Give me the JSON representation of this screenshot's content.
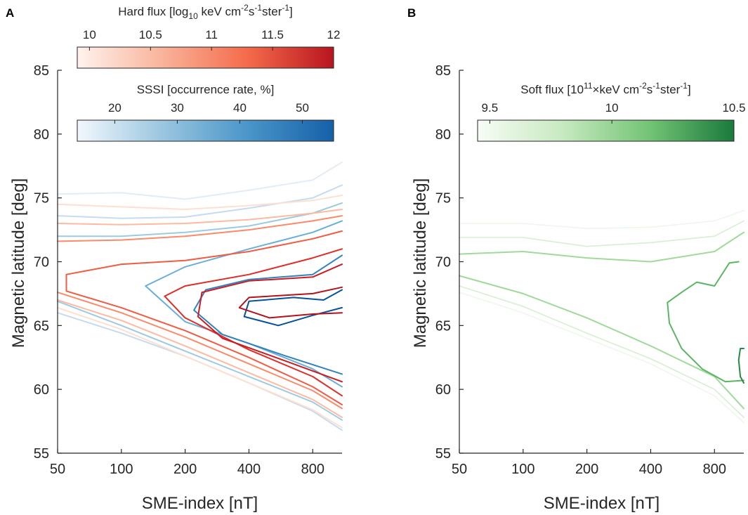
{
  "chart_data": [
    {
      "panel": "A",
      "type": "line",
      "subtype": "contour",
      "xlabel": "SME-index [nT]",
      "ylabel": "Magnetic latitude [deg]",
      "x_scale": "log",
      "xlim": [
        50,
        1100
      ],
      "ylim": [
        55,
        85
      ],
      "x_ticks": [
        "50",
        "100",
        "200",
        "400",
        "800"
      ],
      "x_tick_values": [
        50,
        100,
        200,
        400,
        800
      ],
      "y_ticks": [
        "55",
        "60",
        "65",
        "70",
        "75",
        "80",
        "85"
      ],
      "y_tick_values": [
        55,
        60,
        65,
        70,
        75,
        80,
        85
      ],
      "colorbars": [
        {
          "name": "hard-flux",
          "title_parts": [
            "Hard flux [log",
            "10",
            " keV cm",
            "-2",
            "s",
            "-1",
            "ster",
            "-1",
            "]"
          ],
          "ticks": [
            "10",
            "10.5",
            "11",
            "11.5",
            "12"
          ],
          "tick_values": [
            10,
            10.5,
            11,
            11.5,
            12
          ],
          "range": [
            9.9,
            12
          ],
          "colors": [
            "#fef3ee",
            "#f9b39a",
            "#f46a4a",
            "#b8151f"
          ]
        },
        {
          "name": "sssi",
          "title": "SSSI [occurrence rate, %]",
          "ticks": [
            "20",
            "30",
            "40",
            "50"
          ],
          "tick_values": [
            20,
            30,
            40,
            50
          ],
          "range": [
            14,
            55
          ],
          "colors": [
            "#f2f7fc",
            "#9ac6e0",
            "#4a95c8",
            "#1560a8"
          ]
        }
      ],
      "series": [
        {
          "name": "SSSI 15%",
          "level": 15,
          "color": "#e1ecf7",
          "x": [
            50,
            100,
            200,
            400,
            800,
            1100
          ],
          "y": [
            75.3,
            75.4,
            74.9,
            75.6,
            76.4,
            77.8
          ]
        },
        {
          "name": "SSSI 20%",
          "level": 20,
          "color": "#c6dbef",
          "x": [
            50,
            100,
            200,
            400,
            800,
            1100
          ],
          "y": [
            73.6,
            73.4,
            73.5,
            74.2,
            75.0,
            76.0
          ]
        },
        {
          "name": "SSSI 20% (lower)",
          "level": 20,
          "color": "#c6dbef",
          "x": [
            50,
            100,
            200,
            400,
            800,
            1100
          ],
          "y": [
            66.0,
            64.4,
            62.6,
            60.5,
            58.3,
            56.8
          ]
        },
        {
          "name": "SSSI 30%",
          "level": 30,
          "color": "#9ecae1",
          "x": [
            50,
            100,
            200,
            400,
            800,
            1100
          ],
          "y": [
            72.0,
            72.0,
            72.3,
            72.8,
            73.8,
            74.6
          ]
        },
        {
          "name": "SSSI 30% (lower)",
          "level": 30,
          "color": "#9ecae1",
          "x": [
            50,
            100,
            200,
            400,
            800,
            1100
          ],
          "y": [
            66.9,
            65.0,
            63.0,
            61.0,
            59.0,
            57.6
          ]
        },
        {
          "name": "SSSI 40%",
          "level": 40,
          "color": "#6baed6",
          "x": [
            1100,
            800,
            400,
            200,
            130,
            200,
            400,
            800,
            1100
          ],
          "y": [
            73.2,
            72.3,
            71.0,
            69.6,
            68.1,
            65.3,
            63.6,
            61.6,
            60.2
          ]
        },
        {
          "name": "SSSI 50%",
          "level": 50,
          "color": "#3182bd",
          "x": [
            1100,
            800,
            400,
            250,
            220,
            300,
            600,
            1100
          ],
          "y": [
            70.5,
            69.0,
            68.6,
            67.8,
            66.2,
            64.3,
            62.6,
            61.2
          ]
        },
        {
          "name": "SSSI 55%",
          "level": 55,
          "color": "#08519c",
          "x": [
            1100,
            900,
            650,
            400,
            380,
            550,
            800,
            1100
          ],
          "y": [
            67.8,
            67.0,
            67.2,
            66.9,
            65.7,
            65.0,
            65.8,
            66.4
          ]
        },
        {
          "name": "Hard flux 10.0",
          "level": 10.0,
          "color": "#fde0d2",
          "x": [
            50,
            100,
            200,
            400,
            800,
            1100
          ],
          "y": [
            74.5,
            74.3,
            74.1,
            74.4,
            74.8,
            75.2
          ]
        },
        {
          "name": "Hard flux 10.0 (lower)",
          "level": 10.0,
          "color": "#fde0d2",
          "x": [
            50,
            100,
            200,
            400,
            800,
            1100
          ],
          "y": [
            66.4,
            64.7,
            62.6,
            60.5,
            58.4,
            57.0
          ]
        },
        {
          "name": "Hard flux 10.5",
          "level": 10.5,
          "color": "#fcbba1",
          "x": [
            50,
            100,
            200,
            400,
            800,
            1100
          ],
          "y": [
            73.0,
            72.9,
            73.0,
            73.3,
            73.8,
            74.1
          ]
        },
        {
          "name": "Hard flux 10.5 (lower)",
          "level": 10.5,
          "color": "#fcbba1",
          "x": [
            50,
            100,
            200,
            400,
            800,
            1100
          ],
          "y": [
            67.0,
            65.4,
            63.4,
            61.3,
            59.2,
            57.8
          ]
        },
        {
          "name": "Hard flux 11.0",
          "level": 11.0,
          "color": "#fb8a6a",
          "x": [
            50,
            100,
            200,
            400,
            800,
            1100
          ],
          "y": [
            71.6,
            71.7,
            72.0,
            72.5,
            73.2,
            73.6
          ]
        },
        {
          "name": "Hard flux 11.0 (lower)",
          "level": 11.0,
          "color": "#fb8a6a",
          "x": [
            50,
            100,
            200,
            400,
            800,
            1100
          ],
          "y": [
            67.6,
            66.0,
            64.1,
            62.0,
            59.9,
            58.5
          ]
        },
        {
          "name": "Hard flux 11.5",
          "level": 11.5,
          "color": "#ef5b43",
          "x": [
            1100,
            800,
            400,
            200,
            100,
            55,
            55,
            100,
            200,
            400,
            800,
            1100
          ],
          "y": [
            72.4,
            71.8,
            70.8,
            70.1,
            69.8,
            69.0,
            67.7,
            66.4,
            64.6,
            62.5,
            60.2,
            58.8
          ]
        },
        {
          "name": "Hard flux 11.8",
          "level": 11.8,
          "color": "#de2d26",
          "x": [
            1100,
            800,
            400,
            200,
            160,
            200,
            400,
            800,
            1100
          ],
          "y": [
            71.0,
            70.3,
            69.0,
            68.1,
            67.3,
            65.6,
            63.1,
            61.0,
            59.5
          ]
        },
        {
          "name": "Hard flux 12.0",
          "level": 12.0,
          "color": "#c81d24",
          "x": [
            1100,
            800,
            400,
            240,
            230,
            300,
            600,
            1100
          ],
          "y": [
            69.8,
            68.8,
            68.5,
            67.6,
            65.7,
            64.0,
            62.2,
            60.6
          ]
        },
        {
          "name": "Hard flux 12.2",
          "level": 12.2,
          "color": "#b2131c",
          "x": [
            1100,
            800,
            400,
            360,
            500,
            800,
            1100
          ],
          "y": [
            68.0,
            67.5,
            67.2,
            66.4,
            65.6,
            65.9,
            66.0
          ]
        }
      ]
    },
    {
      "panel": "B",
      "type": "line",
      "subtype": "contour",
      "xlabel": "SME-index [nT]",
      "ylabel": "Magnetic latitude [deg]",
      "x_scale": "log",
      "xlim": [
        50,
        1100
      ],
      "ylim": [
        55,
        85
      ],
      "x_ticks": [
        "50",
        "100",
        "200",
        "400",
        "800"
      ],
      "x_tick_values": [
        50,
        100,
        200,
        400,
        800
      ],
      "y_ticks": [
        "55",
        "60",
        "65",
        "70",
        "75",
        "80",
        "85"
      ],
      "y_tick_values": [
        55,
        60,
        65,
        70,
        75,
        80,
        85
      ],
      "colorbars": [
        {
          "name": "soft-flux",
          "title_parts": [
            "Soft flux [10",
            "11",
            "×keV cm",
            "-2",
            "s",
            "-1",
            "ster",
            "-1",
            "]"
          ],
          "ticks": [
            "9.5",
            "10",
            "10.5"
          ],
          "tick_values": [
            9.5,
            10,
            10.5
          ],
          "range": [
            9.45,
            10.5
          ],
          "colors": [
            "#f7fcf5",
            "#c7e9c0",
            "#74c476",
            "#1a7a3c"
          ]
        }
      ],
      "series": [
        {
          "name": "Soft flux 9.2",
          "level": 9.2,
          "color": "#eef7ec",
          "x": [
            50,
            100,
            200,
            400,
            800,
            1100
          ],
          "y": [
            73.0,
            73.0,
            72.6,
            72.7,
            73.2,
            74.0
          ]
        },
        {
          "name": "Soft flux 9.2 (lower)",
          "level": 9.2,
          "color": "#eef7ec",
          "x": [
            50,
            100,
            200,
            400,
            800,
            1100
          ],
          "y": [
            67.6,
            66.0,
            64.0,
            62.0,
            59.5,
            57.4
          ]
        },
        {
          "name": "Soft flux 9.5",
          "level": 9.5,
          "color": "#d5efd0",
          "x": [
            50,
            100,
            200,
            400,
            800,
            1100
          ],
          "y": [
            71.9,
            71.9,
            71.2,
            71.5,
            72.0,
            73.2
          ]
        },
        {
          "name": "Soft flux 9.5 (lower)",
          "level": 9.5,
          "color": "#d5efd0",
          "x": [
            50,
            100,
            200,
            400,
            800,
            1100
          ],
          "y": [
            68.1,
            66.5,
            64.4,
            62.4,
            60.0,
            57.8
          ]
        },
        {
          "name": "Soft flux 9.8",
          "level": 9.8,
          "color": "#a1d99b",
          "x": [
            50,
            100,
            200,
            400,
            800,
            1100
          ],
          "y": [
            70.6,
            70.8,
            70.3,
            70.0,
            70.8,
            72.3
          ]
        },
        {
          "name": "Soft flux 9.8 (lower)",
          "level": 9.8,
          "color": "#a1d99b",
          "x": [
            50,
            100,
            200,
            400,
            800,
            1100
          ],
          "y": [
            68.9,
            67.5,
            65.6,
            63.4,
            61.0,
            58.5
          ]
        },
        {
          "name": "Soft flux 10.2",
          "level": 10.2,
          "color": "#5cb563",
          "x": [
            1040,
            940,
            800,
            660,
            560,
            480,
            490,
            560,
            700,
            900,
            1100
          ],
          "y": [
            70.0,
            69.9,
            68.1,
            68.4,
            67.6,
            66.8,
            65.2,
            63.2,
            61.6,
            60.6,
            60.7
          ]
        },
        {
          "name": "Soft flux 10.45",
          "level": 10.45,
          "color": "#2a8a42",
          "x": [
            1100,
            1060,
            1040,
            1060,
            1100
          ],
          "y": [
            63.2,
            63.2,
            62.3,
            61.0,
            60.5
          ]
        }
      ]
    }
  ]
}
